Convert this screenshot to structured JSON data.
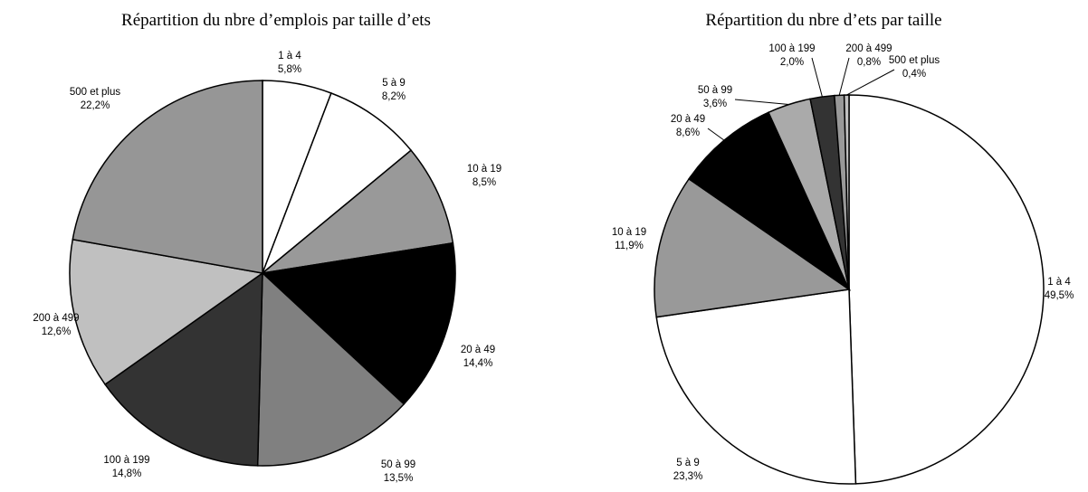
{
  "chart_data": [
    {
      "type": "pie",
      "title": "Répartition du nbre d’emplois par taille d’ets",
      "categories": [
        "1 à 4",
        "5 à 9",
        "10 à 19",
        "20 à 49",
        "50 à 99",
        "100 à 199",
        "200 à 499",
        "500 et plus"
      ],
      "values": [
        5.8,
        8.2,
        8.5,
        14.4,
        13.5,
        14.8,
        12.6,
        22.2
      ],
      "value_labels": [
        "5,8%",
        "8,2%",
        "8,5%",
        "14,4%",
        "13,5%",
        "14,8%",
        "12,6%",
        "22,2%"
      ],
      "colors": [
        "#ffffff",
        "#ffffff",
        "#999999",
        "#000000",
        "#808080",
        "#333333",
        "#c0c0c0",
        "#969696"
      ]
    },
    {
      "type": "pie",
      "title": "Répartition du nbre d’ets par taille",
      "categories": [
        "1 à 4",
        "5 à 9",
        "10 à 19",
        "20 à 49",
        "50 à 99",
        "100 à 199",
        "200 à 499",
        "500 et plus"
      ],
      "values": [
        49.5,
        23.3,
        11.9,
        8.6,
        3.6,
        2.0,
        0.8,
        0.4
      ],
      "value_labels": [
        "49,5%",
        "23,3%",
        "11,9%",
        "8,6%",
        "3,6%",
        "2,0%",
        "0,8%",
        "0,4%"
      ],
      "colors": [
        "#ffffff",
        "#ffffff",
        "#999999",
        "#000000",
        "#aaaaaa",
        "#333333",
        "#999999",
        "#c0c0c0"
      ]
    }
  ]
}
